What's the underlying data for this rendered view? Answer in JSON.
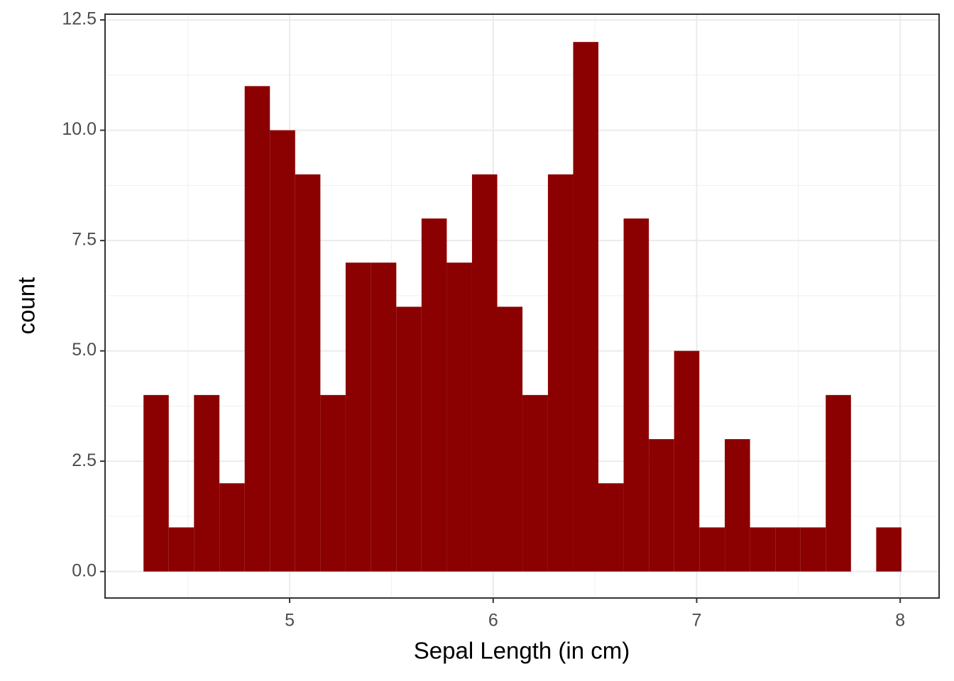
{
  "chart_data": {
    "type": "histogram",
    "x_label": "Sepal Length (in cm)",
    "y_label": "count",
    "bins": [
      4.282,
      4.406,
      4.53,
      4.655,
      4.779,
      4.903,
      5.027,
      5.151,
      5.275,
      5.4,
      5.524,
      5.648,
      5.772,
      5.896,
      6.02,
      6.144,
      6.269,
      6.393,
      6.517,
      6.641,
      6.765,
      6.889,
      7.013,
      7.138,
      7.262,
      7.386,
      7.51,
      7.634,
      7.758,
      7.882,
      8.006
    ],
    "values": [
      4,
      1,
      4,
      2,
      11,
      10,
      9,
      4,
      7,
      7,
      6,
      8,
      7,
      9,
      6,
      4,
      9,
      12,
      2,
      8,
      3,
      5,
      1,
      3,
      1,
      1,
      1,
      4,
      0,
      1
    ],
    "color": "#8b0000",
    "xlim": [
      4.093,
      8.191
    ],
    "ylim": [
      -0.6,
      12.63
    ],
    "xticks": [
      5,
      6,
      7,
      8
    ],
    "yticks": [
      {
        "value": 0,
        "label": "0.0"
      },
      {
        "value": 2.5,
        "label": "2.5"
      },
      {
        "value": 5,
        "label": "5.0"
      },
      {
        "value": 7.5,
        "label": "7.5"
      },
      {
        "value": 10,
        "label": "10.0"
      },
      {
        "value": 12.5,
        "label": "12.5"
      }
    ],
    "minor_xticks": [
      4.5,
      5.5,
      6.5,
      7.5
    ],
    "minor_yticks": [
      1.25,
      3.75,
      6.25,
      8.75,
      11.25
    ],
    "grid": true
  }
}
